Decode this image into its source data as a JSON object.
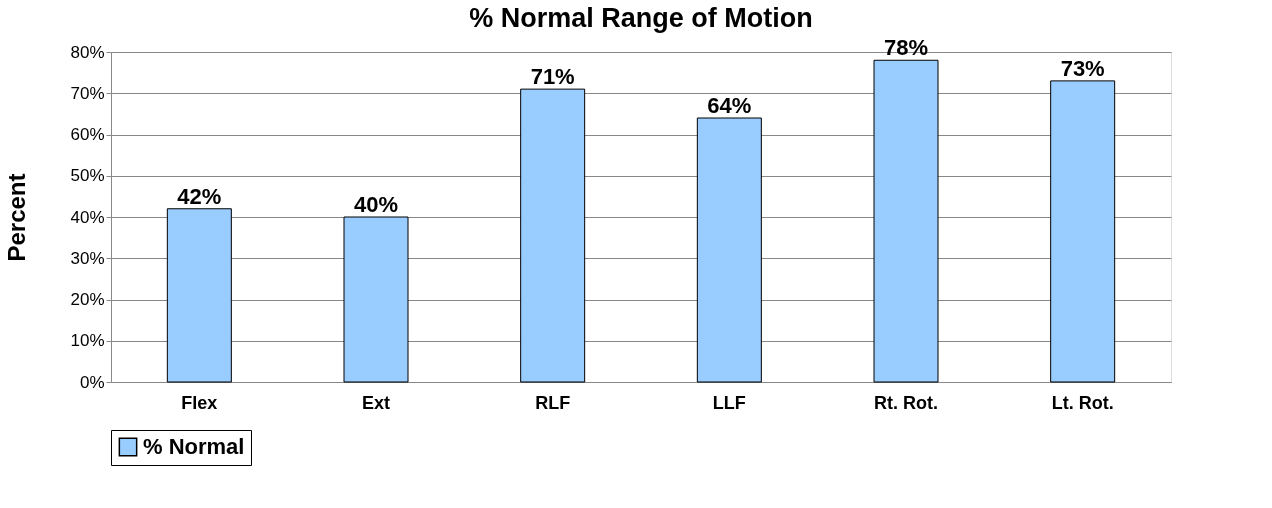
{
  "chart_data": {
    "type": "bar",
    "title": "% Normal Range of Motion",
    "ylabel": "Percent",
    "categories": [
      "Flex",
      "Ext",
      "RLF",
      "LLF",
      "Rt. Rot.",
      "Lt. Rot."
    ],
    "series": [
      {
        "name": "% Normal",
        "color": "#99ccff",
        "values": [
          42,
          40,
          71,
          64,
          78,
          73
        ],
        "value_labels": [
          "42%",
          "40%",
          "71%",
          "64%",
          "78%",
          "73%"
        ]
      }
    ],
    "ylim": [
      0,
      80
    ],
    "yticks": [
      {
        "value": 0,
        "label": "0%"
      },
      {
        "value": 10,
        "label": "10%"
      },
      {
        "value": 20,
        "label": "20%"
      },
      {
        "value": 30,
        "label": "30%"
      },
      {
        "value": 40,
        "label": "40%"
      },
      {
        "value": 50,
        "label": "50%"
      },
      {
        "value": 60,
        "label": "60%"
      },
      {
        "value": 70,
        "label": "70%"
      },
      {
        "value": 80,
        "label": "80%"
      }
    ],
    "grid": "y",
    "legend": "bottom"
  }
}
